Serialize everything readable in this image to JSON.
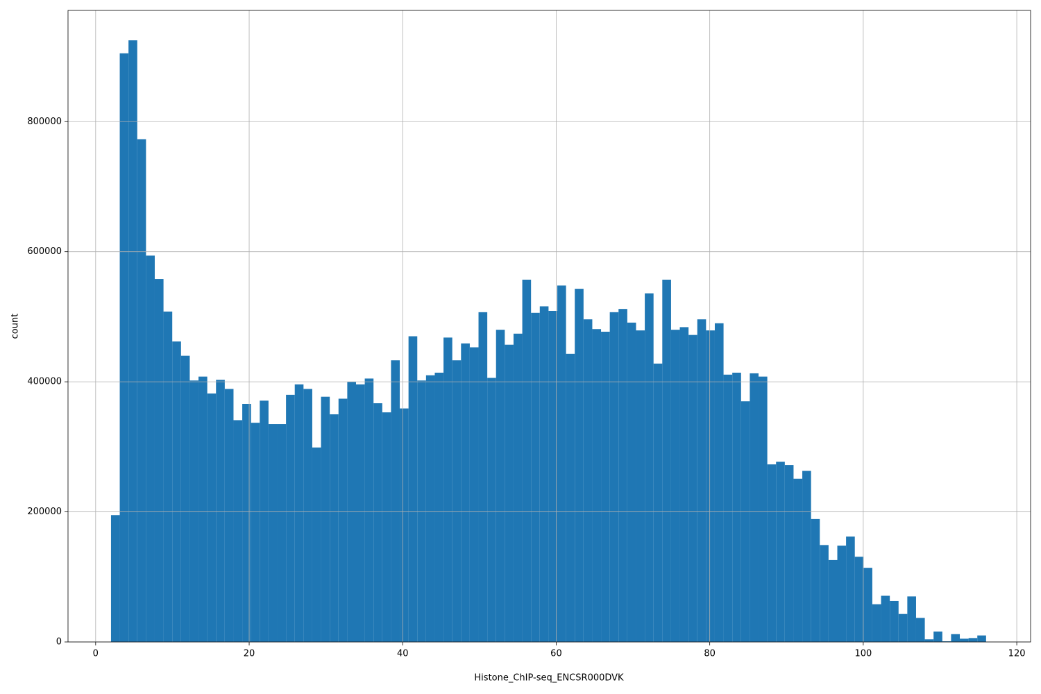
{
  "chart_data": {
    "type": "histogram",
    "xlabel": "Histone_ChIP-seq_ENCSR000DVK",
    "ylabel": "count",
    "color": "#1f77b4",
    "grid": true,
    "xlim": [
      -3.6,
      121.8
    ],
    "ylim": [
      0,
      971000
    ],
    "xticks": [
      0,
      20,
      40,
      60,
      80,
      100,
      120
    ],
    "yticks": [
      0,
      200000,
      400000,
      600000,
      800000
    ],
    "bins": [
      2,
      3.14,
      4.28,
      5.42,
      6.56,
      7.7,
      8.84,
      9.98,
      11.12,
      12.26,
      13.4,
      14.54,
      15.68,
      16.82,
      17.96,
      19.1,
      20.24,
      21.38,
      22.52,
      23.66,
      24.8,
      25.94,
      27.08,
      28.22,
      29.36,
      30.5,
      31.64,
      32.78,
      33.92,
      35.06,
      36.2,
      37.34,
      38.48,
      39.62,
      40.76,
      41.9,
      43.04,
      44.18,
      45.32,
      46.46,
      47.6,
      48.74,
      49.88,
      51.02,
      52.16,
      53.3,
      54.44,
      55.58,
      56.72,
      57.86,
      59,
      60.14,
      61.28,
      62.42,
      63.56,
      64.7,
      65.84,
      66.98,
      68.12,
      69.26,
      70.4,
      71.54,
      72.68,
      73.82,
      74.96,
      76.1,
      77.24,
      78.38,
      79.52,
      80.66,
      81.8,
      82.94,
      84.08,
      85.22,
      86.36,
      87.5,
      88.64,
      89.78,
      90.92,
      92.06,
      93.2,
      94.34,
      95.48,
      96.62,
      97.76,
      98.9,
      100.04,
      101.18,
      102.32,
      103.46,
      104.6,
      105.74,
      106.88,
      108.02,
      109.16,
      110.3,
      111.44,
      112.58,
      113.72,
      114.86,
      116
    ],
    "counts": [
      195000,
      905000,
      925000,
      773000,
      594000,
      558000,
      508000,
      462000,
      440000,
      402000,
      408000,
      382000,
      403000,
      389000,
      341000,
      366000,
      337000,
      371000,
      335000,
      335000,
      380000,
      396000,
      389000,
      299000,
      377000,
      350000,
      374000,
      400000,
      396000,
      405000,
      367000,
      353000,
      433000,
      359000,
      470000,
      402000,
      410000,
      414000,
      468000,
      433000,
      459000,
      453000,
      507000,
      406000,
      480000,
      457000,
      474000,
      557000,
      506000,
      516000,
      509000,
      548000,
      443000,
      543000,
      496000,
      481000,
      477000,
      507000,
      512000,
      491000,
      479000,
      536000,
      428000,
      557000,
      480000,
      484000,
      472000,
      496000,
      479000,
      490000,
      411000,
      414000,
      370000,
      413000,
      408000,
      273000,
      277000,
      272000,
      251000,
      263000,
      189000,
      149000,
      126000,
      148000,
      162000,
      131000,
      114000,
      58000,
      71000,
      63000,
      43000,
      70000,
      37000,
      4000,
      16000,
      1000,
      12000,
      5000,
      6000,
      10000
    ]
  }
}
